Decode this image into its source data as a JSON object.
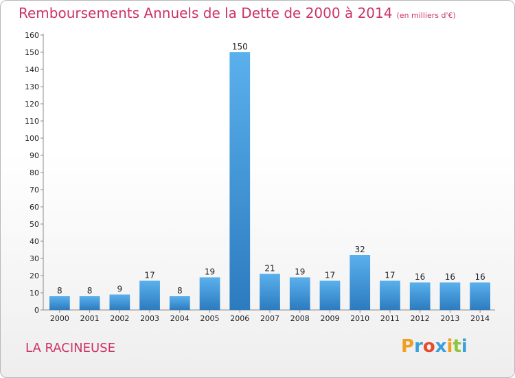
{
  "chart_data": {
    "type": "bar",
    "title": "Remboursements Annuels de la Dette de 2000 à 2014",
    "subtitle": "(en milliers d'€)",
    "xlabel": "",
    "ylabel": "",
    "categories": [
      "2000",
      "2001",
      "2002",
      "2003",
      "2004",
      "2005",
      "2006",
      "2007",
      "2008",
      "2009",
      "2010",
      "2011",
      "2012",
      "2013",
      "2014"
    ],
    "values": [
      8,
      8,
      9,
      17,
      8,
      19,
      150,
      21,
      19,
      17,
      32,
      17,
      16,
      16,
      16
    ],
    "ylim": [
      0,
      160
    ],
    "yticks": [
      0,
      10,
      20,
      30,
      40,
      50,
      60,
      70,
      80,
      90,
      100,
      110,
      120,
      130,
      140,
      150,
      160
    ],
    "grid": false,
    "bar_color": "#3d8fd4"
  },
  "footer": {
    "place": "LA RACINEUSE",
    "logo": {
      "letters": [
        "P",
        "r",
        "o",
        "x",
        "i",
        "t",
        "i"
      ],
      "colors": [
        "#f0a020",
        "#3aa0dc",
        "#e84a2a",
        "#3aa0dc",
        "#f0a020",
        "#8cc63f",
        "#3aa0dc"
      ]
    }
  },
  "colors": {
    "title": "#cc3366",
    "bar_light": "#5ab0ec",
    "bar_dark": "#2c7bbf"
  }
}
